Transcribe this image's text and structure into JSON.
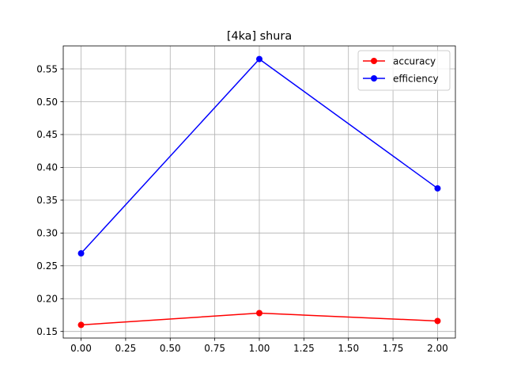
{
  "chart_data": {
    "type": "line",
    "title": "[4ka] shura",
    "xlabel": "",
    "ylabel": "",
    "x": [
      0,
      1,
      2
    ],
    "series": [
      {
        "name": "accuracy",
        "values": [
          0.16,
          0.178,
          0.166
        ],
        "color": "#ff0000",
        "marker": "circle"
      },
      {
        "name": "efficiency",
        "values": [
          0.269,
          0.565,
          0.368
        ],
        "color": "#0000ff",
        "marker": "circle"
      }
    ],
    "xlim": [
      -0.1,
      2.1
    ],
    "ylim": [
      0.14,
      0.585
    ],
    "x_ticks": [
      "0.00",
      "0.25",
      "0.50",
      "0.75",
      "1.00",
      "1.25",
      "1.50",
      "1.75",
      "2.00"
    ],
    "y_ticks": [
      "0.15",
      "0.20",
      "0.25",
      "0.30",
      "0.35",
      "0.40",
      "0.45",
      "0.50",
      "0.55"
    ],
    "grid": true,
    "legend_position": "top-right"
  }
}
